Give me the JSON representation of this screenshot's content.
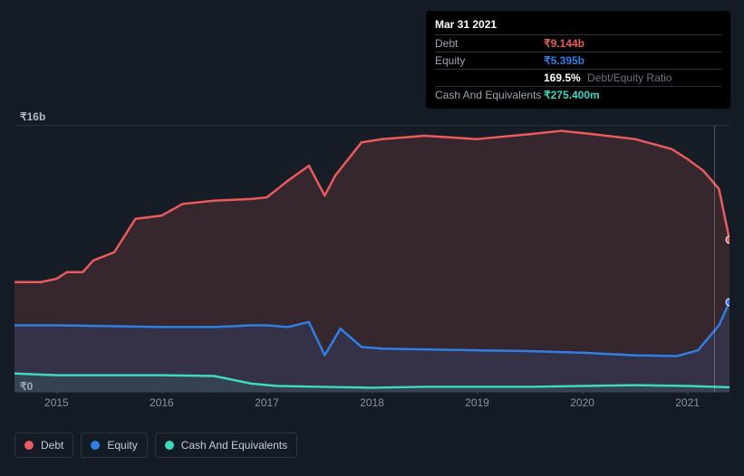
{
  "chart": {
    "type": "area",
    "background_color": "#151b24",
    "grid_color": "#2a3240",
    "ylim": [
      0,
      16
    ],
    "ylabel_max": "₹16b",
    "ylabel_min": "₹0",
    "x_ticks": [
      "2015",
      "2016",
      "2017",
      "2018",
      "2019",
      "2020",
      "2021"
    ],
    "x_domain": [
      2014.6,
      2021.4
    ],
    "line_width": 2.5,
    "series": {
      "debt": {
        "label": "Debt",
        "color": "#eb5b5b",
        "fill": "rgba(235,91,91,0.15)",
        "points": [
          [
            2014.6,
            6.6
          ],
          [
            2014.85,
            6.6
          ],
          [
            2015.0,
            6.8
          ],
          [
            2015.1,
            7.2
          ],
          [
            2015.25,
            7.2
          ],
          [
            2015.35,
            7.9
          ],
          [
            2015.55,
            8.4
          ],
          [
            2015.75,
            10.4
          ],
          [
            2016.0,
            10.6
          ],
          [
            2016.2,
            11.3
          ],
          [
            2016.5,
            11.5
          ],
          [
            2016.85,
            11.6
          ],
          [
            2017.0,
            11.7
          ],
          [
            2017.2,
            12.7
          ],
          [
            2017.4,
            13.6
          ],
          [
            2017.55,
            11.8
          ],
          [
            2017.65,
            13.0
          ],
          [
            2017.9,
            15.0
          ],
          [
            2018.1,
            15.2
          ],
          [
            2018.5,
            15.4
          ],
          [
            2019.0,
            15.2
          ],
          [
            2019.5,
            15.5
          ],
          [
            2019.8,
            15.7
          ],
          [
            2020.1,
            15.5
          ],
          [
            2020.5,
            15.2
          ],
          [
            2020.85,
            14.6
          ],
          [
            2021.0,
            14.0
          ],
          [
            2021.15,
            13.3
          ],
          [
            2021.3,
            12.2
          ],
          [
            2021.4,
            9.144
          ]
        ]
      },
      "equity": {
        "label": "Equity",
        "color": "#2f7fe6",
        "fill": "rgba(47,127,230,0.13)",
        "points": [
          [
            2014.6,
            4.0
          ],
          [
            2015.0,
            4.0
          ],
          [
            2015.5,
            3.95
          ],
          [
            2016.0,
            3.9
          ],
          [
            2016.5,
            3.9
          ],
          [
            2016.85,
            4.0
          ],
          [
            2017.0,
            4.0
          ],
          [
            2017.2,
            3.9
          ],
          [
            2017.4,
            4.2
          ],
          [
            2017.55,
            2.2
          ],
          [
            2017.7,
            3.8
          ],
          [
            2017.9,
            2.7
          ],
          [
            2018.1,
            2.6
          ],
          [
            2018.5,
            2.55
          ],
          [
            2019.0,
            2.5
          ],
          [
            2019.5,
            2.45
          ],
          [
            2020.0,
            2.35
          ],
          [
            2020.5,
            2.2
          ],
          [
            2020.9,
            2.15
          ],
          [
            2021.1,
            2.5
          ],
          [
            2021.3,
            4.0
          ],
          [
            2021.4,
            5.395
          ]
        ]
      },
      "cash": {
        "label": "Cash And Equivalents",
        "color": "#3dd9c1",
        "fill": "rgba(61,217,193,0.10)",
        "points": [
          [
            2014.6,
            1.1
          ],
          [
            2015.0,
            1.0
          ],
          [
            2015.5,
            1.0
          ],
          [
            2016.0,
            1.0
          ],
          [
            2016.5,
            0.95
          ],
          [
            2016.85,
            0.5
          ],
          [
            2017.1,
            0.35
          ],
          [
            2017.5,
            0.3
          ],
          [
            2018.0,
            0.25
          ],
          [
            2018.5,
            0.3
          ],
          [
            2019.0,
            0.3
          ],
          [
            2019.5,
            0.3
          ],
          [
            2020.0,
            0.35
          ],
          [
            2020.5,
            0.4
          ],
          [
            2021.0,
            0.35
          ],
          [
            2021.4,
            0.2754
          ]
        ]
      }
    },
    "marker_x": 2021.25,
    "end_dots": {
      "debt_y": 9.144,
      "equity_y": 5.395
    }
  },
  "tooltip": {
    "date": "Mar 31 2021",
    "rows": [
      {
        "label": "Debt",
        "value": "₹9.144b",
        "color": "#eb5b5b"
      },
      {
        "label": "Equity",
        "value": "₹5.395b",
        "color": "#2f7fe6"
      },
      {
        "label": "",
        "value": "169.5%",
        "extra": "Debt/Equity Ratio",
        "color": "#ffffff"
      },
      {
        "label": "Cash And Equivalents",
        "value": "₹275.400m",
        "color": "#3dd9c1"
      }
    ]
  },
  "legend": [
    {
      "label": "Debt",
      "color": "#eb5b5b"
    },
    {
      "label": "Equity",
      "color": "#2f7fe6"
    },
    {
      "label": "Cash And Equivalents",
      "color": "#3dd9c1"
    }
  ]
}
